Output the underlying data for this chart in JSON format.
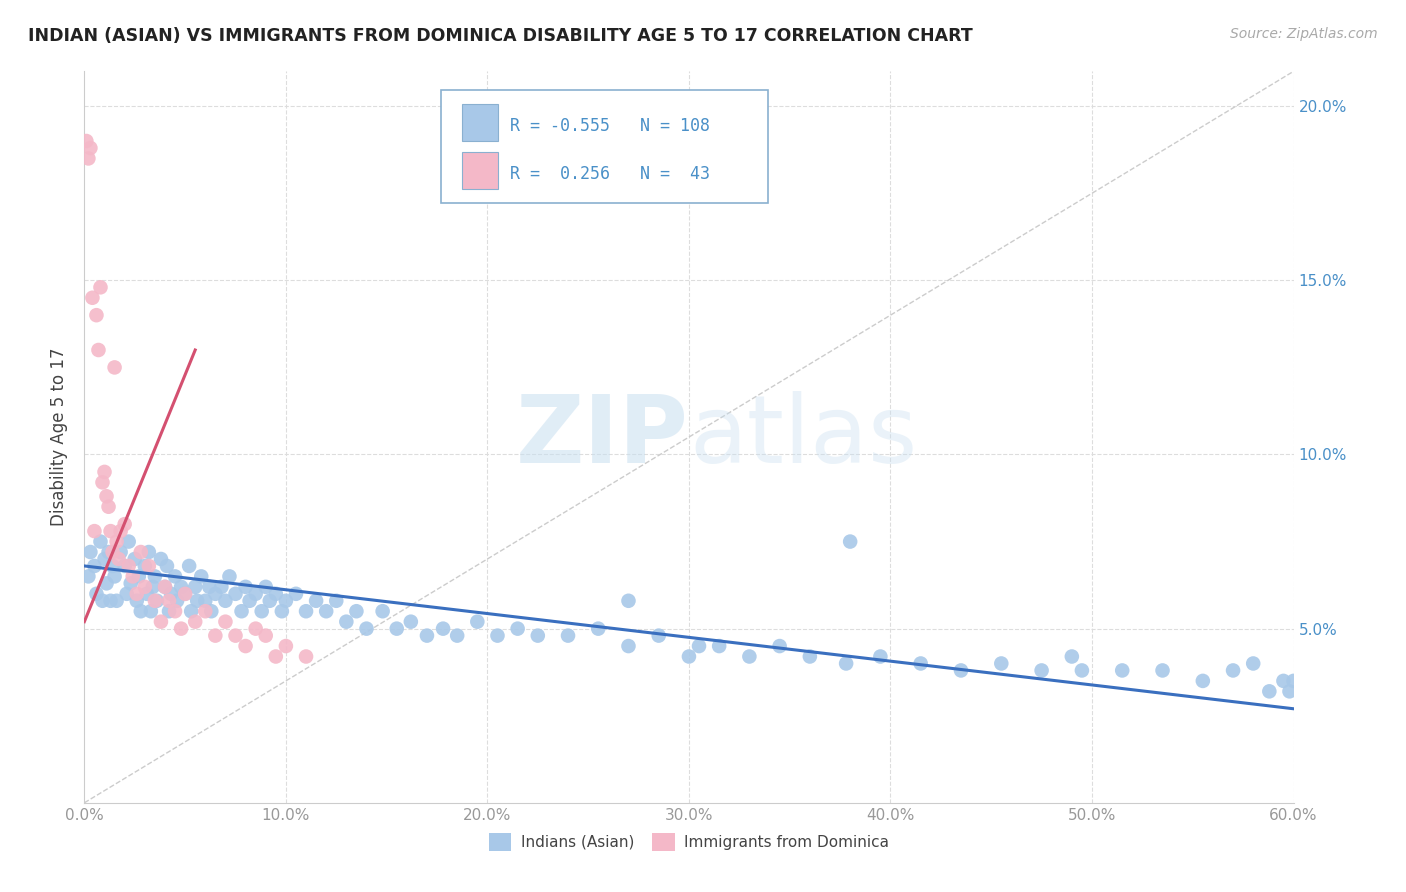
{
  "title": "INDIAN (ASIAN) VS IMMIGRANTS FROM DOMINICA DISABILITY AGE 5 TO 17 CORRELATION CHART",
  "source": "Source: ZipAtlas.com",
  "ylabel": "Disability Age 5 to 17",
  "xlim": [
    0.0,
    0.6
  ],
  "ylim": [
    0.0,
    0.21
  ],
  "xticks": [
    0.0,
    0.1,
    0.2,
    0.3,
    0.4,
    0.5,
    0.6
  ],
  "xticklabels": [
    "0.0%",
    "10.0%",
    "20.0%",
    "30.0%",
    "40.0%",
    "50.0%",
    "60.0%"
  ],
  "yticks": [
    0.0,
    0.05,
    0.1,
    0.15,
    0.2
  ],
  "yticklabels_right": [
    "",
    "5.0%",
    "10.0%",
    "15.0%",
    "20.0%"
  ],
  "blue_color": "#a8c8e8",
  "pink_color": "#f4b8c8",
  "blue_line_color": "#3a6fbf",
  "pink_line_color": "#d45070",
  "dashed_line_color": "#cccccc",
  "legend_border_color": "#8ab0d0",
  "R_blue": -0.555,
  "N_blue": 108,
  "R_pink": 0.256,
  "N_pink": 43,
  "blue_scatter_x": [
    0.002,
    0.003,
    0.005,
    0.006,
    0.008,
    0.009,
    0.01,
    0.011,
    0.012,
    0.013,
    0.014,
    0.015,
    0.016,
    0.018,
    0.02,
    0.021,
    0.022,
    0.023,
    0.025,
    0.026,
    0.027,
    0.028,
    0.03,
    0.031,
    0.032,
    0.033,
    0.034,
    0.035,
    0.036,
    0.038,
    0.04,
    0.041,
    0.042,
    0.043,
    0.045,
    0.046,
    0.048,
    0.05,
    0.052,
    0.053,
    0.055,
    0.056,
    0.058,
    0.06,
    0.062,
    0.063,
    0.065,
    0.068,
    0.07,
    0.072,
    0.075,
    0.078,
    0.08,
    0.082,
    0.085,
    0.088,
    0.09,
    0.092,
    0.095,
    0.098,
    0.1,
    0.105,
    0.11,
    0.115,
    0.12,
    0.125,
    0.13,
    0.135,
    0.14,
    0.148,
    0.155,
    0.162,
    0.17,
    0.178,
    0.185,
    0.195,
    0.205,
    0.215,
    0.225,
    0.24,
    0.255,
    0.27,
    0.285,
    0.3,
    0.315,
    0.33,
    0.345,
    0.36,
    0.378,
    0.395,
    0.415,
    0.435,
    0.455,
    0.475,
    0.495,
    0.515,
    0.535,
    0.555,
    0.57,
    0.58,
    0.588,
    0.595,
    0.598,
    0.6,
    0.305,
    0.27,
    0.38,
    0.49
  ],
  "blue_scatter_y": [
    0.065,
    0.072,
    0.068,
    0.06,
    0.075,
    0.058,
    0.07,
    0.063,
    0.072,
    0.058,
    0.068,
    0.065,
    0.058,
    0.072,
    0.068,
    0.06,
    0.075,
    0.063,
    0.07,
    0.058,
    0.065,
    0.055,
    0.068,
    0.06,
    0.072,
    0.055,
    0.062,
    0.065,
    0.058,
    0.07,
    0.062,
    0.068,
    0.055,
    0.06,
    0.065,
    0.058,
    0.062,
    0.06,
    0.068,
    0.055,
    0.062,
    0.058,
    0.065,
    0.058,
    0.062,
    0.055,
    0.06,
    0.062,
    0.058,
    0.065,
    0.06,
    0.055,
    0.062,
    0.058,
    0.06,
    0.055,
    0.062,
    0.058,
    0.06,
    0.055,
    0.058,
    0.06,
    0.055,
    0.058,
    0.055,
    0.058,
    0.052,
    0.055,
    0.05,
    0.055,
    0.05,
    0.052,
    0.048,
    0.05,
    0.048,
    0.052,
    0.048,
    0.05,
    0.048,
    0.048,
    0.05,
    0.045,
    0.048,
    0.042,
    0.045,
    0.042,
    0.045,
    0.042,
    0.04,
    0.042,
    0.04,
    0.038,
    0.04,
    0.038,
    0.038,
    0.038,
    0.038,
    0.035,
    0.038,
    0.04,
    0.032,
    0.035,
    0.032,
    0.035,
    0.045,
    0.058,
    0.075,
    0.042
  ],
  "pink_scatter_x": [
    0.001,
    0.002,
    0.003,
    0.004,
    0.005,
    0.006,
    0.007,
    0.008,
    0.009,
    0.01,
    0.011,
    0.012,
    0.013,
    0.014,
    0.015,
    0.016,
    0.017,
    0.018,
    0.02,
    0.022,
    0.024,
    0.026,
    0.028,
    0.03,
    0.032,
    0.035,
    0.038,
    0.04,
    0.042,
    0.045,
    0.048,
    0.05,
    0.055,
    0.06,
    0.065,
    0.07,
    0.075,
    0.08,
    0.085,
    0.09,
    0.095,
    0.1,
    0.11
  ],
  "pink_scatter_y": [
    0.19,
    0.185,
    0.188,
    0.145,
    0.078,
    0.14,
    0.13,
    0.148,
    0.092,
    0.095,
    0.088,
    0.085,
    0.078,
    0.072,
    0.125,
    0.075,
    0.07,
    0.078,
    0.08,
    0.068,
    0.065,
    0.06,
    0.072,
    0.062,
    0.068,
    0.058,
    0.052,
    0.062,
    0.058,
    0.055,
    0.05,
    0.06,
    0.052,
    0.055,
    0.048,
    0.052,
    0.048,
    0.045,
    0.05,
    0.048,
    0.042,
    0.045,
    0.042
  ],
  "blue_trend_x": [
    0.0,
    0.6
  ],
  "blue_trend_y": [
    0.068,
    0.027
  ],
  "pink_trend_x": [
    0.0,
    0.055
  ],
  "pink_trend_y": [
    0.052,
    0.13
  ],
  "diag_line_x": [
    0.0,
    0.6
  ],
  "diag_line_y": [
    0.0,
    0.21
  ],
  "watermark_zip": "ZIP",
  "watermark_atlas": "atlas",
  "background_color": "#ffffff",
  "grid_color": "#dddddd",
  "right_axis_color": "#4a90c8",
  "tick_color": "#999999",
  "bottom_legend_labels": [
    "Indians (Asian)",
    "Immigrants from Dominica"
  ]
}
